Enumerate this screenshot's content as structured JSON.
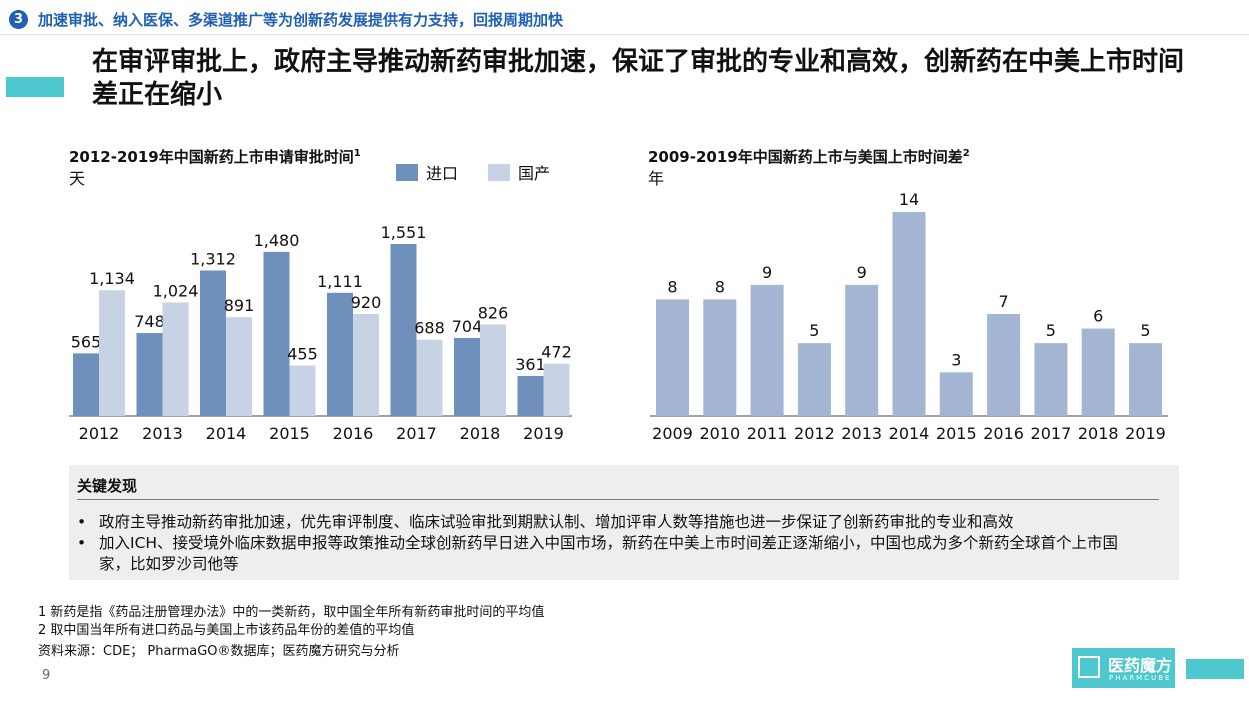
{
  "header": {
    "badge": "3",
    "section_title": "加速审批、纳入医保、多渠道推广等为创新药发展提供有力支持，回报周期加快",
    "headline": "在审评审批上，政府主导推动新药审批加速，保证了审批的专业和高效，创新药在中美上市时间差正在缩小"
  },
  "colors": {
    "import": "#6f8fbc",
    "domestic": "#c7d3e5",
    "gap": "#a3b5d3",
    "accent": "#4ec8cf",
    "badge": "#1f5fb4"
  },
  "chart_data": [
    {
      "type": "bar",
      "title": "2012-2019年中国新药上市申请审批时间",
      "title_sup": "1",
      "ylabel": "天",
      "categories": [
        "2012",
        "2013",
        "2014",
        "2015",
        "2016",
        "2017",
        "2018",
        "2019"
      ],
      "series": [
        {
          "name": "进口",
          "values": [
            565,
            748,
            1312,
            1480,
            1111,
            1551,
            704,
            361
          ],
          "labels": [
            "565",
            "748",
            "1,312",
            "1,480",
            "1,111",
            "1,551",
            "704",
            "361"
          ]
        },
        {
          "name": "国产",
          "values": [
            1134,
            1024,
            891,
            455,
            920,
            688,
            826,
            472
          ],
          "labels": [
            "1,134",
            "1,024",
            "891",
            "455",
            "920",
            "688",
            "826",
            "472"
          ]
        }
      ],
      "legend_position": "top-right",
      "grid": false
    },
    {
      "type": "bar",
      "title": "2009-2019年中国新药上市与美国上市时间差",
      "title_sup": "2",
      "ylabel": "年",
      "categories": [
        "2009",
        "2010",
        "2011",
        "2012",
        "2013",
        "2014",
        "2015",
        "2016",
        "2017",
        "2018",
        "2019"
      ],
      "values": [
        8,
        8,
        9,
        5,
        9,
        14,
        3,
        7,
        5,
        6,
        5
      ],
      "grid": false
    }
  ],
  "findings": {
    "title": "关键发现",
    "bullets": [
      "政府主导推动新药审批加速，优先审评制度、临床试验审批到期默认制、增加评审人数等措施也进一步保证了创新药审批的专业和高效",
      "加入ICH、接受境外临床数据申报等政策推动全球创新药早日进入中国市场，新药在中美上市时间差正逐渐缩小，中国也成为多个新药全球首个上市国家，比如罗沙司他等"
    ]
  },
  "footnotes": [
    "1 新药是指《药品注册管理办法》中的一类新药，取中国全年所有新药审批时间的平均值",
    "2 取中国当年所有进口药品与美国上市该药品年份的差值的平均值"
  ],
  "source": "资料来源：CDE； PharmaGO®数据库；医药魔方研究与分析",
  "page_number": "9",
  "logo": {
    "name": "医药魔方",
    "sub": "PHARMCUBE"
  }
}
